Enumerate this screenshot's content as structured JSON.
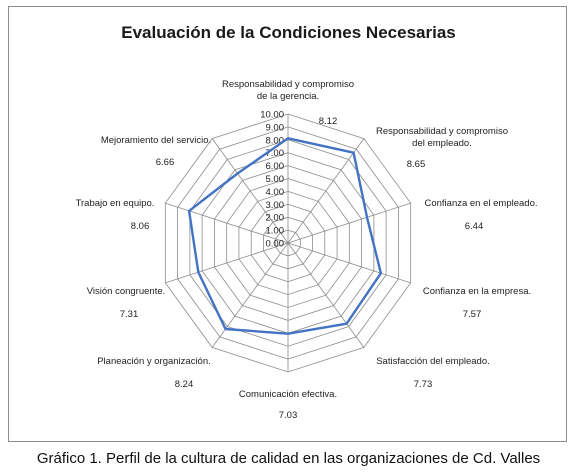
{
  "chart_data": {
    "type": "radar",
    "title": "Evaluación de la Condiciones Necesarias",
    "categories": [
      [
        "Responsabilidad y compromiso",
        "de la gerencia."
      ],
      [
        "Responsabilidad y compromiso",
        "del empleado."
      ],
      [
        "Confianza en el empleado."
      ],
      [
        "Confianza en la empresa."
      ],
      [
        "Satisfacción del empleado."
      ],
      [
        "Comunicación efectiva."
      ],
      [
        "Planeación y organización."
      ],
      [
        "Visión congruente."
      ],
      [
        "Trabajo en equipo."
      ],
      [
        "Mejoramiento del servicio."
      ]
    ],
    "values": [
      8.12,
      8.65,
      6.44,
      7.57,
      7.73,
      7.03,
      8.24,
      7.31,
      8.06,
      6.66
    ],
    "value_labels": [
      "8.12",
      "8.65",
      "6.44",
      "7.57",
      "7.73",
      "7.03",
      "8.24",
      "7.31",
      "8.06",
      "6.66"
    ],
    "rlim": [
      0,
      10
    ],
    "ticks": [
      "0.00",
      "1.00",
      "2.00",
      "3.00",
      "4.00",
      "5.00",
      "6.00",
      "7.00",
      "8.00",
      "9.00",
      "10.00"
    ],
    "series_color": "#4472c4",
    "grid_color": "#8c8c8c"
  },
  "caption": "Gráfico 1. Perfil de la cultura de calidad en las organizaciones de Cd. Valles"
}
